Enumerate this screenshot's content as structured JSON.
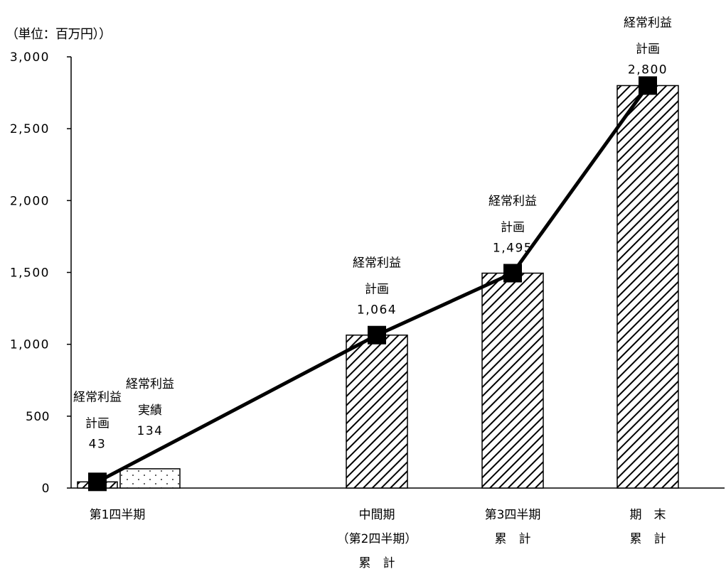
{
  "unit_label": "（単位：百万円））",
  "chart_data": {
    "type": "bar",
    "ylim": [
      0,
      3000
    ],
    "y_ticks": [
      0,
      500,
      1000,
      1500,
      2000,
      2500,
      3000
    ],
    "y_tick_labels": [
      "0",
      "500",
      "1,000",
      "1,500",
      "2,000",
      "2,500",
      "3,000"
    ],
    "categories": [
      {
        "lines": [
          "第1四半期"
        ]
      },
      {
        "lines": [
          "中間期",
          "（第2四半期）",
          "累　計"
        ]
      },
      {
        "lines": [
          "第3四半期",
          "累　計"
        ]
      },
      {
        "lines": [
          "期　末",
          "累　計"
        ]
      }
    ],
    "bars": [
      {
        "category": 0,
        "slot": "left",
        "value": 43,
        "pattern": "hatch",
        "labels": [
          "経常利益",
          "計画",
          "43"
        ]
      },
      {
        "category": 0,
        "slot": "right",
        "value": 134,
        "pattern": "dots",
        "labels": [
          "経常利益",
          "実績",
          "134"
        ]
      },
      {
        "category": 1,
        "slot": "center",
        "value": 1064,
        "pattern": "hatch",
        "labels": [
          "経常利益",
          "計画",
          "1,064"
        ]
      },
      {
        "category": 2,
        "slot": "center",
        "value": 1495,
        "pattern": "hatch",
        "labels": [
          "経常利益",
          "計画",
          "1,495"
        ]
      },
      {
        "category": 3,
        "slot": "center",
        "value": 2800,
        "pattern": "hatch",
        "labels": [
          "経常利益",
          "計画",
          "2,800"
        ]
      }
    ],
    "line": {
      "values": [
        43,
        1064,
        1495,
        2800
      ],
      "color": "#000000",
      "marker": "square"
    },
    "grid": false,
    "legend": "none"
  }
}
